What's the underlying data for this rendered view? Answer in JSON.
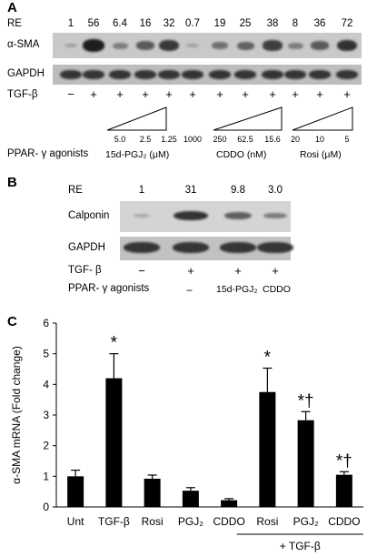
{
  "panelA": {
    "letter": "A",
    "re_label": "RE",
    "re_values": [
      "1",
      "56",
      "6.4",
      "16",
      "32",
      "0.7",
      "19",
      "25",
      "38",
      "8",
      "36",
      "72"
    ],
    "band_intensity": [
      0.05,
      1.0,
      0.3,
      0.55,
      0.8,
      0.05,
      0.4,
      0.5,
      0.75,
      0.3,
      0.55,
      0.85
    ],
    "blot1_label": "α-SMA",
    "blot2_label": "GAPDH",
    "tgf_label": "TGF-β",
    "tgf_signs": [
      "−",
      "+",
      "+",
      "+",
      "+",
      "+",
      "+",
      "+",
      "+",
      "+",
      "+",
      "+"
    ],
    "agonists_label": "PPAR- γ  agonists",
    "pgj_conc": [
      "5.0",
      "2.5",
      "1.25"
    ],
    "cddo_conc": [
      "1000",
      "250",
      "62.5",
      "15.6"
    ],
    "rosi_conc": [
      "20",
      "10",
      "5"
    ],
    "pgj_name": "15d-PGJ₂ (μM)",
    "cddo_name": "CDDO (nM)",
    "rosi_name": "Rosi (μM)"
  },
  "panelB": {
    "letter": "B",
    "re_label": "RE",
    "re_values": [
      "1",
      "31",
      "9.8",
      "3.0"
    ],
    "band_intensity": [
      0.05,
      0.85,
      0.55,
      0.35
    ],
    "blot1_label": "Calponin",
    "blot2_label": "GAPDH",
    "tgf_label": "TGF- β",
    "tgf_signs": [
      "−",
      "+",
      "+",
      "+"
    ],
    "agonists_label": "PPAR- γ  agonists",
    "agonist_names": [
      "−",
      "15d-PGJ₂",
      "CDDO"
    ]
  },
  "panelC": {
    "letter": "C",
    "tgf_group_label": "+ TGF-β",
    "chart_data": {
      "type": "bar",
      "ylabel": "α-SMA mRNA (Fold change)",
      "ylim": [
        0,
        6
      ],
      "yticks": [
        0,
        1,
        2,
        3,
        4,
        5,
        6
      ],
      "categories": [
        "Unt",
        "TGF-β",
        "Rosi",
        "PGJ₂",
        "CDDO",
        "Rosi",
        "PGJ₂",
        "CDDO"
      ],
      "values": [
        1.0,
        4.2,
        0.92,
        0.53,
        0.22,
        3.75,
        2.83,
        1.05
      ],
      "errors": [
        0.2,
        0.8,
        0.12,
        0.1,
        0.05,
        0.78,
        0.28,
        0.1
      ],
      "annotations": [
        "",
        "*",
        "",
        "",
        "",
        "*",
        "*†",
        "*†"
      ],
      "bar_color": "#000000"
    }
  }
}
